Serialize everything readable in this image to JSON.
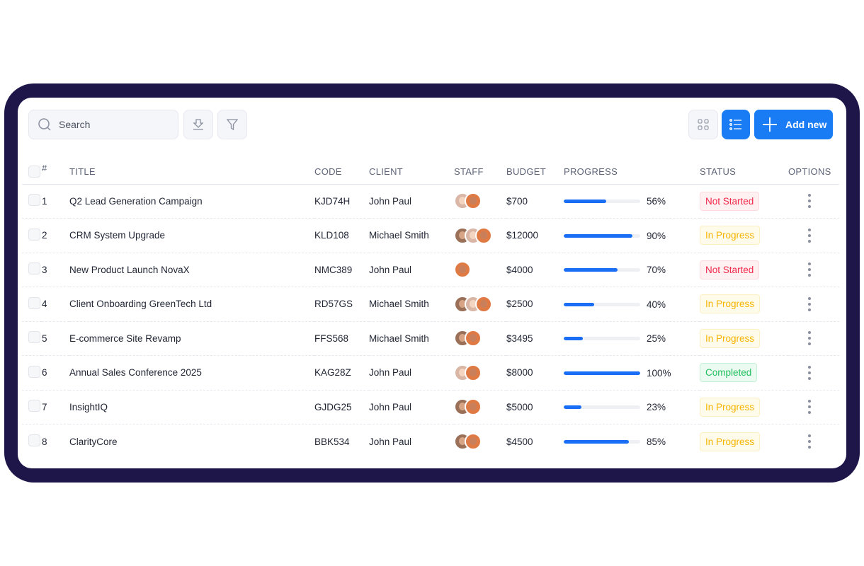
{
  "toolbar": {
    "search_placeholder": "Search",
    "add_label": "Add new",
    "icons": [
      "search-icon",
      "download-icon",
      "filter-icon",
      "grid-view-icon",
      "list-view-icon",
      "plus-icon"
    ]
  },
  "colors": {
    "frame": "#1e1548",
    "accent": "#1a7cf5",
    "not_started": "#f0284a",
    "in_progress": "#f5b400",
    "completed": "#1fbf5c"
  },
  "columns": [
    "#",
    "TITLE",
    "CODE",
    "CLIENT",
    "STAFF",
    "BUDGET",
    "PROGRESS",
    "STATUS",
    "OPTIONS"
  ],
  "rows": [
    {
      "n": "1",
      "title": "Q2 Lead Generation Campaign",
      "code": "KJD74H",
      "client": "John Paul",
      "staff": [
        "f1",
        "f2"
      ],
      "budget": "$700",
      "progress": 56,
      "progress_label": "56%",
      "status": "Not Started",
      "status_key": "ns"
    },
    {
      "n": "2",
      "title": "CRM System Upgrade",
      "code": "KLD108",
      "client": "Michael Smith",
      "staff": [
        "m",
        "f1",
        "f2"
      ],
      "budget": "$12000",
      "progress": 90,
      "progress_label": "90%",
      "status": "In Progress",
      "status_key": "ip"
    },
    {
      "n": "3",
      "title": "New Product Launch NovaX",
      "code": "NMC389",
      "client": "John Paul",
      "staff": [
        "f2"
      ],
      "budget": "$4000",
      "progress": 70,
      "progress_label": "70%",
      "status": "Not Started",
      "status_key": "ns"
    },
    {
      "n": "4",
      "title": "Client Onboarding GreenTech Ltd",
      "code": "RD57GS",
      "client": "Michael Smith",
      "staff": [
        "m",
        "f1",
        "f2"
      ],
      "budget": "$2500",
      "progress": 40,
      "progress_label": "40%",
      "status": "In Progress",
      "status_key": "ip"
    },
    {
      "n": "5",
      "title": "E-commerce Site Revamp",
      "code": "FFS568",
      "client": "Michael Smith",
      "staff": [
        "m",
        "f2"
      ],
      "budget": "$3495",
      "progress": 25,
      "progress_label": "25%",
      "status": "In Progress",
      "status_key": "ip"
    },
    {
      "n": "6",
      "title": "Annual Sales Conference 2025",
      "code": "KAG28Z",
      "client": "John Paul",
      "staff": [
        "f1",
        "f2"
      ],
      "budget": "$8000",
      "progress": 100,
      "progress_label": "100%",
      "status": "Completed",
      "status_key": "c"
    },
    {
      "n": "7",
      "title": "InsightIQ",
      "code": "GJDG25",
      "client": "John Paul",
      "staff": [
        "m",
        "f2"
      ],
      "budget": "$5000",
      "progress": 23,
      "progress_label": "23%",
      "status": "In Progress",
      "status_key": "ip"
    },
    {
      "n": "8",
      "title": "ClarityCore",
      "code": "BBK534",
      "client": "John Paul",
      "staff": [
        "m",
        "f2"
      ],
      "budget": "$4500",
      "progress": 85,
      "progress_label": "85%",
      "status": "In Progress",
      "status_key": "ip"
    }
  ]
}
